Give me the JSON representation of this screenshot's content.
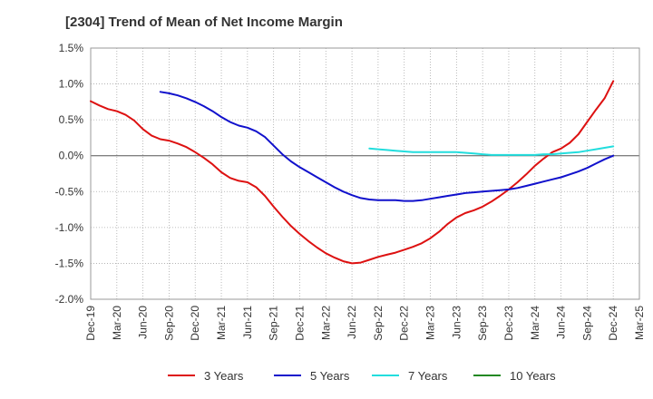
{
  "chart_data": {
    "type": "line",
    "title": "[2304]  Trend of Mean of Net Income Margin",
    "xlabel": "",
    "ylabel": "",
    "x_ticks": [
      "Dec-19",
      "Mar-20",
      "Jun-20",
      "Sep-20",
      "Dec-20",
      "Mar-21",
      "Jun-21",
      "Sep-21",
      "Dec-21",
      "Mar-22",
      "Jun-22",
      "Sep-22",
      "Dec-22",
      "Mar-23",
      "Jun-23",
      "Sep-23",
      "Dec-23",
      "Mar-24",
      "Jun-24",
      "Sep-24",
      "Dec-24",
      "Mar-25"
    ],
    "y_ticks": [
      "1.5%",
      "1.0%",
      "0.5%",
      "0.0%",
      "-0.5%",
      "-1.0%",
      "-1.5%",
      "-2.0%"
    ],
    "y_tick_values": [
      1.5,
      1.0,
      0.5,
      0.0,
      -0.5,
      -1.0,
      -1.5,
      -2.0
    ],
    "ylim": [
      -2.0,
      1.5
    ],
    "x_range": [
      "Dec-19",
      "Mar-25"
    ],
    "grid": "dotted",
    "legend_position": "bottom",
    "series": [
      {
        "name": "3 Years",
        "color": "#dd1111",
        "points": [
          [
            "Dec-19",
            0.76
          ],
          [
            "Jan-20",
            0.7
          ],
          [
            "Feb-20",
            0.65
          ],
          [
            "Mar-20",
            0.62
          ],
          [
            "Apr-20",
            0.57
          ],
          [
            "May-20",
            0.49
          ],
          [
            "Jun-20",
            0.37
          ],
          [
            "Jul-20",
            0.28
          ],
          [
            "Aug-20",
            0.23
          ],
          [
            "Sep-20",
            0.21
          ],
          [
            "Oct-20",
            0.17
          ],
          [
            "Nov-20",
            0.12
          ],
          [
            "Dec-20",
            0.05
          ],
          [
            "Jan-21",
            -0.03
          ],
          [
            "Feb-21",
            -0.12
          ],
          [
            "Mar-21",
            -0.23
          ],
          [
            "Apr-21",
            -0.31
          ],
          [
            "May-21",
            -0.35
          ],
          [
            "Jun-21",
            -0.37
          ],
          [
            "Jul-21",
            -0.44
          ],
          [
            "Aug-21",
            -0.56
          ],
          [
            "Sep-21",
            -0.71
          ],
          [
            "Oct-21",
            -0.85
          ],
          [
            "Nov-21",
            -0.98
          ],
          [
            "Dec-21",
            -1.09
          ],
          [
            "Jan-22",
            -1.19
          ],
          [
            "Feb-22",
            -1.28
          ],
          [
            "Mar-22",
            -1.36
          ],
          [
            "Apr-22",
            -1.42
          ],
          [
            "May-22",
            -1.47
          ],
          [
            "Jun-22",
            -1.5
          ],
          [
            "Jul-22",
            -1.49
          ],
          [
            "Aug-22",
            -1.45
          ],
          [
            "Sep-22",
            -1.41
          ],
          [
            "Oct-22",
            -1.38
          ],
          [
            "Nov-22",
            -1.35
          ],
          [
            "Dec-22",
            -1.31
          ],
          [
            "Jan-23",
            -1.27
          ],
          [
            "Feb-23",
            -1.22
          ],
          [
            "Mar-23",
            -1.15
          ],
          [
            "Apr-23",
            -1.06
          ],
          [
            "May-23",
            -0.95
          ],
          [
            "Jun-23",
            -0.86
          ],
          [
            "Jul-23",
            -0.8
          ],
          [
            "Aug-23",
            -0.76
          ],
          [
            "Sep-23",
            -0.71
          ],
          [
            "Oct-23",
            -0.64
          ],
          [
            "Nov-23",
            -0.56
          ],
          [
            "Dec-23",
            -0.47
          ],
          [
            "Jan-24",
            -0.37
          ],
          [
            "Feb-24",
            -0.26
          ],
          [
            "Mar-24",
            -0.14
          ],
          [
            "Apr-24",
            -0.04
          ],
          [
            "May-24",
            0.05
          ],
          [
            "Jun-24",
            0.1
          ],
          [
            "Jul-24",
            0.18
          ],
          [
            "Aug-24",
            0.3
          ],
          [
            "Sep-24",
            0.47
          ],
          [
            "Oct-24",
            0.64
          ],
          [
            "Nov-24",
            0.8
          ],
          [
            "Dec-24",
            1.04
          ]
        ]
      },
      {
        "name": "5 Years",
        "color": "#1111cc",
        "points": [
          [
            "Aug-20",
            0.89
          ],
          [
            "Sep-20",
            0.87
          ],
          [
            "Oct-20",
            0.84
          ],
          [
            "Nov-20",
            0.8
          ],
          [
            "Dec-20",
            0.75
          ],
          [
            "Jan-21",
            0.69
          ],
          [
            "Feb-21",
            0.62
          ],
          [
            "Mar-21",
            0.54
          ],
          [
            "Apr-21",
            0.47
          ],
          [
            "May-21",
            0.42
          ],
          [
            "Jun-21",
            0.39
          ],
          [
            "Jul-21",
            0.34
          ],
          [
            "Aug-21",
            0.26
          ],
          [
            "Sep-21",
            0.14
          ],
          [
            "Oct-21",
            0.02
          ],
          [
            "Nov-21",
            -0.08
          ],
          [
            "Dec-21",
            -0.16
          ],
          [
            "Jan-22",
            -0.23
          ],
          [
            "Feb-22",
            -0.3
          ],
          [
            "Mar-22",
            -0.37
          ],
          [
            "Apr-22",
            -0.44
          ],
          [
            "May-22",
            -0.5
          ],
          [
            "Jun-22",
            -0.55
          ],
          [
            "Jul-22",
            -0.59
          ],
          [
            "Aug-22",
            -0.61
          ],
          [
            "Sep-22",
            -0.62
          ],
          [
            "Oct-22",
            -0.62
          ],
          [
            "Nov-22",
            -0.62
          ],
          [
            "Dec-22",
            -0.63
          ],
          [
            "Jan-23",
            -0.63
          ],
          [
            "Feb-23",
            -0.62
          ],
          [
            "Mar-23",
            -0.6
          ],
          [
            "Apr-23",
            -0.58
          ],
          [
            "May-23",
            -0.56
          ],
          [
            "Jun-23",
            -0.54
          ],
          [
            "Jul-23",
            -0.52
          ],
          [
            "Aug-23",
            -0.51
          ],
          [
            "Sep-23",
            -0.5
          ],
          [
            "Oct-23",
            -0.49
          ],
          [
            "Nov-23",
            -0.48
          ],
          [
            "Dec-23",
            -0.47
          ],
          [
            "Jan-24",
            -0.45
          ],
          [
            "Feb-24",
            -0.42
          ],
          [
            "Mar-24",
            -0.39
          ],
          [
            "Apr-24",
            -0.36
          ],
          [
            "May-24",
            -0.33
          ],
          [
            "Jun-24",
            -0.3
          ],
          [
            "Jul-24",
            -0.26
          ],
          [
            "Aug-24",
            -0.22
          ],
          [
            "Sep-24",
            -0.17
          ],
          [
            "Oct-24",
            -0.11
          ],
          [
            "Nov-24",
            -0.05
          ],
          [
            "Dec-24",
            0.0
          ]
        ]
      },
      {
        "name": "7 Years",
        "color": "#22dddd",
        "points": [
          [
            "Aug-22",
            0.1
          ],
          [
            "Sep-22",
            0.09
          ],
          [
            "Oct-22",
            0.08
          ],
          [
            "Nov-22",
            0.07
          ],
          [
            "Dec-22",
            0.06
          ],
          [
            "Jan-23",
            0.05
          ],
          [
            "Feb-23",
            0.05
          ],
          [
            "Mar-23",
            0.05
          ],
          [
            "Apr-23",
            0.05
          ],
          [
            "May-23",
            0.05
          ],
          [
            "Jun-23",
            0.05
          ],
          [
            "Jul-23",
            0.04
          ],
          [
            "Aug-23",
            0.03
          ],
          [
            "Sep-23",
            0.02
          ],
          [
            "Oct-23",
            0.01
          ],
          [
            "Nov-23",
            0.01
          ],
          [
            "Dec-23",
            0.01
          ],
          [
            "Jan-24",
            0.01
          ],
          [
            "Feb-24",
            0.01
          ],
          [
            "Mar-24",
            0.01
          ],
          [
            "Apr-24",
            0.02
          ],
          [
            "May-24",
            0.02
          ],
          [
            "Jun-24",
            0.03
          ],
          [
            "Jul-24",
            0.04
          ],
          [
            "Aug-24",
            0.05
          ],
          [
            "Sep-24",
            0.07
          ],
          [
            "Oct-24",
            0.09
          ],
          [
            "Nov-24",
            0.11
          ],
          [
            "Dec-24",
            0.13
          ]
        ]
      },
      {
        "name": "10 Years",
        "color": "#228822",
        "points": []
      }
    ]
  }
}
